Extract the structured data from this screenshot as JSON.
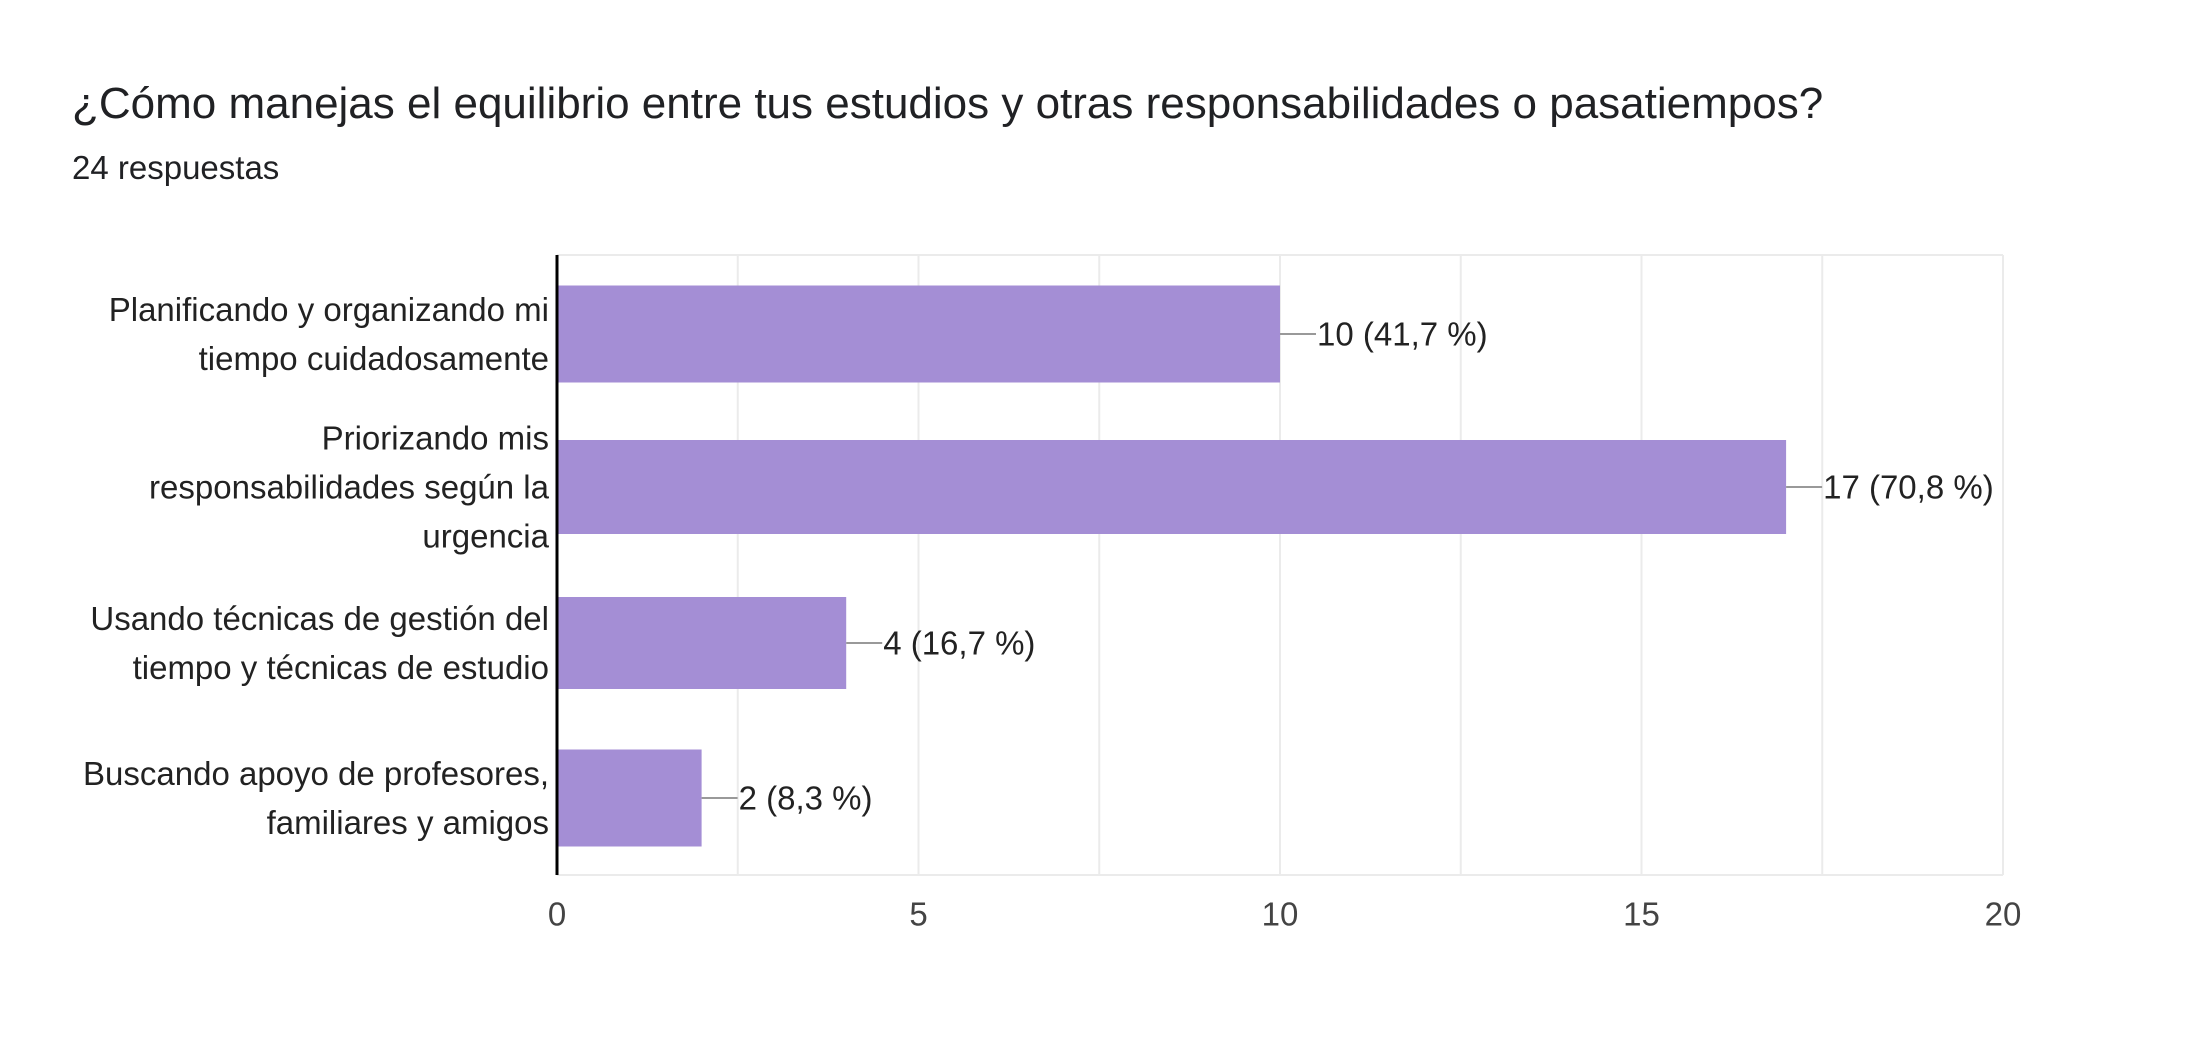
{
  "question": {
    "title": "¿Cómo manejas el equilibrio entre tus estudios y otras responsabilidades o pasatiempos?",
    "responses": "24 respuestas"
  },
  "colors": {
    "bar": "#a48ed5",
    "axis": "#000000",
    "grid": "#ebebeb",
    "leader": "#999999"
  },
  "chart_data": {
    "type": "bar",
    "orientation": "horizontal",
    "categories": [
      "Planificando y organizando mi tiempo cuidadosamente",
      "Priorizando mis responsabilidades según la urgencia",
      "Usando técnicas de gestión del tiempo y técnicas de estudio",
      "Buscando apoyo de profesores, familiares y amigos"
    ],
    "category_lines": [
      [
        "Planificando y organizando mi",
        "tiempo cuidadosamente"
      ],
      [
        "Priorizando mis",
        "responsabilidades según la",
        "urgencia"
      ],
      [
        "Usando técnicas de gestión del",
        "tiempo y técnicas de estudio"
      ],
      [
        "Buscando apoyo de profesores,",
        "familiares y amigos"
      ]
    ],
    "values": [
      10,
      17,
      4,
      2
    ],
    "data_labels": [
      "10 (41,7 %)",
      "17 (70,8 %)",
      "4 (16,7 %)",
      "2 (8,3 %)"
    ],
    "xlim": [
      0,
      20
    ],
    "ticks": [
      0,
      5,
      10,
      15,
      20
    ],
    "tick_labels": [
      "0",
      "5",
      "10",
      "15",
      "20"
    ],
    "grid": true
  }
}
